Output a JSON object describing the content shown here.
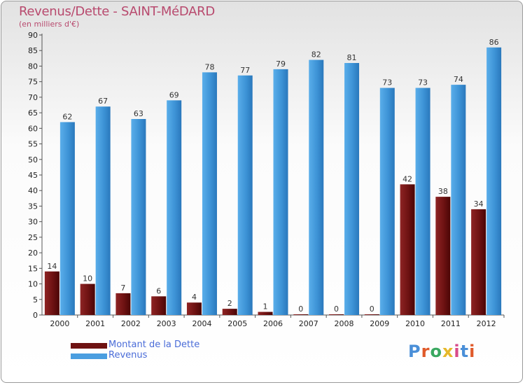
{
  "chart_data": {
    "type": "bar",
    "title": "Revenus/Dette - SAINT-MéDARD",
    "subtitle": "(en milliers d'€)",
    "categories": [
      "2000",
      "2001",
      "2002",
      "2003",
      "2004",
      "2005",
      "2006",
      "2007",
      "2008",
      "2009",
      "2010",
      "2011",
      "2012"
    ],
    "series": [
      {
        "name": "Montant de la Dette",
        "color": "#7a1515",
        "values": [
          14,
          10,
          7,
          6,
          4,
          2,
          1,
          0,
          0,
          0,
          42,
          38,
          34
        ]
      },
      {
        "name": "Revenus",
        "color": "#4a9ee0",
        "values": [
          62,
          67,
          63,
          69,
          78,
          77,
          79,
          82,
          81,
          73,
          73,
          74,
          86
        ]
      }
    ],
    "ylim": [
      0,
      90
    ],
    "yticks": [
      0,
      5,
      10,
      15,
      20,
      25,
      30,
      35,
      40,
      45,
      50,
      55,
      60,
      65,
      70,
      75,
      80,
      85,
      90
    ],
    "grid": false,
    "legend_position": "bottom-left"
  },
  "logo": {
    "text": "Proxiti"
  }
}
